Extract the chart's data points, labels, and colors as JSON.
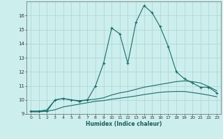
{
  "xlabel": "Humidex (Indice chaleur)",
  "background_color": "#cceeed",
  "grid_color": "#aad4d3",
  "line_color": "#1a6b6b",
  "xlim": [
    -0.5,
    23.5
  ],
  "ylim": [
    9,
    17
  ],
  "x": [
    0,
    1,
    2,
    3,
    4,
    5,
    6,
    7,
    8,
    9,
    10,
    11,
    12,
    13,
    14,
    15,
    16,
    17,
    18,
    19,
    20,
    21,
    22,
    23
  ],
  "curve_main": [
    9.2,
    9.2,
    9.2,
    10.0,
    10.1,
    10.0,
    9.9,
    10.0,
    11.0,
    12.6,
    15.1,
    14.7,
    12.6,
    15.5,
    16.7,
    16.2,
    15.2,
    13.8,
    12.0,
    11.5,
    11.2,
    10.9,
    10.9,
    10.5
  ],
  "curve_upper": [
    9.2,
    9.2,
    9.3,
    10.0,
    10.1,
    10.0,
    9.95,
    10.0,
    10.05,
    10.15,
    10.35,
    10.5,
    10.6,
    10.75,
    10.9,
    11.0,
    11.1,
    11.2,
    11.3,
    11.35,
    11.3,
    11.2,
    10.95,
    10.65
  ],
  "curve_lower": [
    9.15,
    9.15,
    9.2,
    9.3,
    9.5,
    9.6,
    9.7,
    9.8,
    9.9,
    9.95,
    10.05,
    10.12,
    10.2,
    10.28,
    10.38,
    10.46,
    10.54,
    10.58,
    10.6,
    10.6,
    10.52,
    10.44,
    10.34,
    10.22
  ],
  "yticks": [
    9,
    10,
    11,
    12,
    13,
    14,
    15,
    16
  ],
  "xtick_labels": [
    "0",
    "1",
    "2",
    "3",
    "4",
    "5",
    "6",
    "7",
    "8",
    "9",
    "10",
    "11",
    "12",
    "13",
    "14",
    "15",
    "16",
    "17",
    "18",
    "19",
    "20",
    "21",
    "22",
    "23"
  ]
}
